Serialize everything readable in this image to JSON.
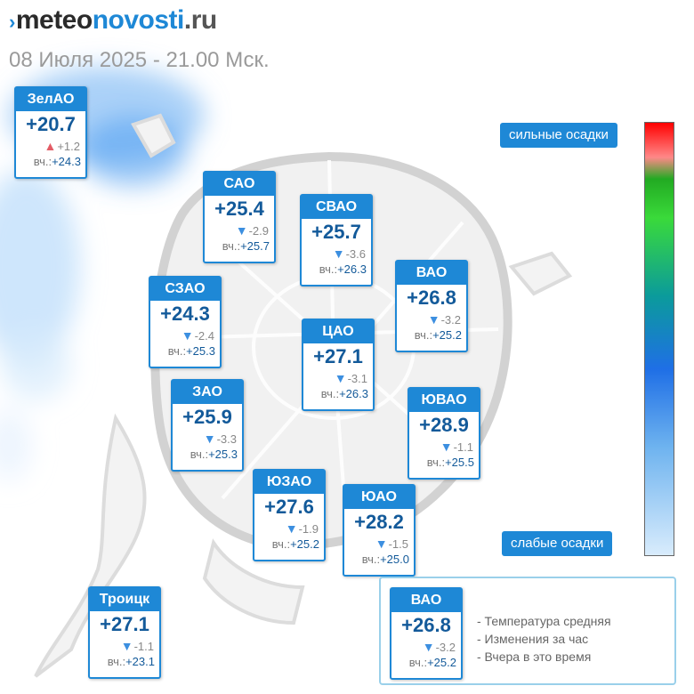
{
  "header": {
    "logo_part1": "meteo",
    "logo_part2": "novosti",
    "logo_part3": ".ru",
    "logo_mark": "›",
    "subtitle": "08 Июля 2025 - 21.00 Мск."
  },
  "labels": {
    "yesterday_prefix": "вч.:"
  },
  "districts": [
    {
      "id": "zelao",
      "name": "ЗелАО",
      "temp": "+20.7",
      "change": "+1.2",
      "dir": "up",
      "yesterday": "+24.3"
    },
    {
      "id": "sao",
      "name": "САО",
      "temp": "+25.4",
      "change": "-2.9",
      "dir": "down",
      "yesterday": "+25.7"
    },
    {
      "id": "svao",
      "name": "СВАО",
      "temp": "+25.7",
      "change": "-3.6",
      "dir": "down",
      "yesterday": "+26.3"
    },
    {
      "id": "vao",
      "name": "ВАО",
      "temp": "+26.8",
      "change": "-3.2",
      "dir": "down",
      "yesterday": "+25.2"
    },
    {
      "id": "szao",
      "name": "СЗАО",
      "temp": "+24.3",
      "change": "-2.4",
      "dir": "down",
      "yesterday": "+25.3"
    },
    {
      "id": "cao",
      "name": "ЦАО",
      "temp": "+27.1",
      "change": "-3.1",
      "dir": "down",
      "yesterday": "+26.3"
    },
    {
      "id": "zao",
      "name": "ЗАО",
      "temp": "+25.9",
      "change": "-3.3",
      "dir": "down",
      "yesterday": "+25.3"
    },
    {
      "id": "yuvao",
      "name": "ЮВАО",
      "temp": "+28.9",
      "change": "-1.1",
      "dir": "down",
      "yesterday": "+25.5"
    },
    {
      "id": "yuzao",
      "name": "ЮЗАО",
      "temp": "+27.6",
      "change": "-1.9",
      "dir": "down",
      "yesterday": "+25.2"
    },
    {
      "id": "yuao",
      "name": "ЮАО",
      "temp": "+28.2",
      "change": "-1.5",
      "dir": "down",
      "yesterday": "+25.0"
    },
    {
      "id": "troitsk",
      "name": "Троицк",
      "temp": "+27.1",
      "change": "-1.1",
      "dir": "down",
      "yesterday": "+23.1"
    }
  ],
  "scale": {
    "top_label": "сильные осадки",
    "bottom_label": "слабые осадки",
    "colors": [
      "#ff0000",
      "#ff8888",
      "#22aa22",
      "#3ada3a",
      "#0b9b9b",
      "#1f6fe6",
      "#6eb3ef",
      "#d9ecfc"
    ]
  },
  "legend": {
    "example": {
      "name": "ВАО",
      "temp": "+26.8",
      "change": "-3.2",
      "dir": "down",
      "yesterday": "+25.2"
    },
    "line1": "- Температура средняя",
    "line2": "- Изменения за час",
    "line3": "- Вчера в это время"
  },
  "colors": {
    "accent": "#1e88d6",
    "temp_text": "#135a9a",
    "down_arrow": "#3c8fe0",
    "up_arrow": "#e35c66"
  }
}
